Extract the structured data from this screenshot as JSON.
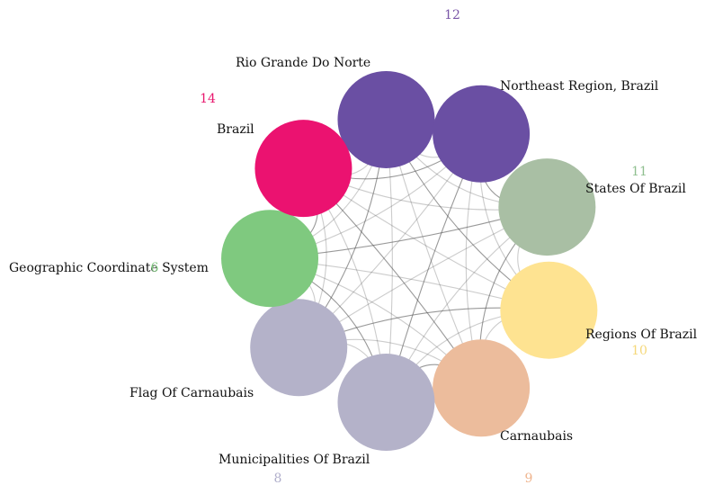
{
  "nodes": [
    {
      "id": "rio",
      "label": "Rio Grande Do Norte",
      "color": "#6a4fa3"
    },
    {
      "id": "northeast",
      "label": "Northeast Region, Brazil",
      "color": "#6a4fa3"
    },
    {
      "id": "states",
      "label": "States Of Brazil",
      "color": "#a9bfa4"
    },
    {
      "id": "regions",
      "label": "Regions Of Brazil",
      "color": "#fee391"
    },
    {
      "id": "carnaubais",
      "label": "Carnaubais",
      "color": "#ecbc9c"
    },
    {
      "id": "municipalities",
      "label": "Municipalities Of Brazil",
      "color": "#b4b2c9"
    },
    {
      "id": "flag",
      "label": "Flag Of Carnaubais",
      "color": "#b4b2c9"
    },
    {
      "id": "geo",
      "label": "Geographic Coordinate System",
      "color": "#7fc97f"
    },
    {
      "id": "brazil",
      "label": "Brazil",
      "color": "#eb1270"
    }
  ],
  "group_labels": [
    {
      "text": "12",
      "color": "#7a56a8"
    },
    {
      "text": "14",
      "color": "#e8166d"
    },
    {
      "text": "11",
      "color": "#8fbf8f"
    },
    {
      "text": "10",
      "color": "#f5d87a"
    },
    {
      "text": "9",
      "color": "#efb48d"
    },
    {
      "text": "8",
      "color": "#b0aecb"
    },
    {
      "text": "6",
      "color": "#7fc97f"
    }
  ],
  "edge_color": "#555555"
}
